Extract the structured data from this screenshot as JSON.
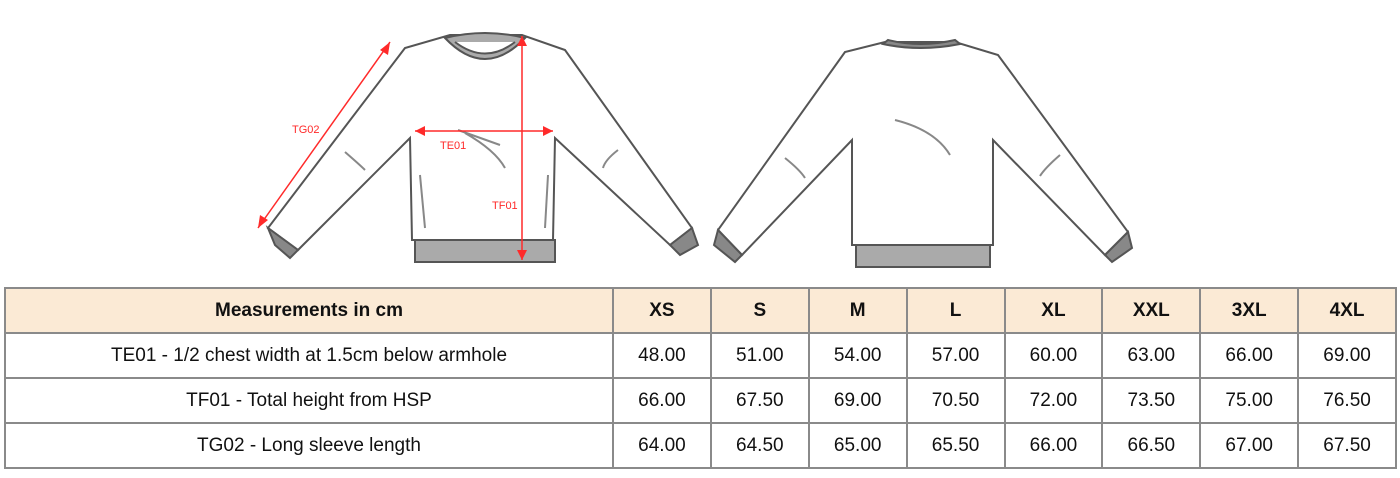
{
  "diagram": {
    "labels": {
      "sleeve": "TG02",
      "chest": "TE01",
      "height": "TF01"
    },
    "colors": {
      "measure": "#ff2a2a",
      "outline": "#555555",
      "rib": "#a9a9a9"
    }
  },
  "table": {
    "header": "Measurements in cm",
    "sizes": [
      "XS",
      "S",
      "M",
      "L",
      "XL",
      "XXL",
      "3XL",
      "4XL"
    ],
    "rows": [
      {
        "label": "TE01 - 1/2 chest width at 1.5cm below armhole",
        "values": [
          "48.00",
          "51.00",
          "54.00",
          "57.00",
          "60.00",
          "63.00",
          "66.00",
          "69.00"
        ]
      },
      {
        "label": "TF01 - Total height from HSP",
        "values": [
          "66.00",
          "67.50",
          "69.00",
          "70.50",
          "72.00",
          "73.50",
          "75.00",
          "76.50"
        ]
      },
      {
        "label": "TG02 - Long sleeve length",
        "values": [
          "64.00",
          "64.50",
          "65.00",
          "65.50",
          "66.00",
          "66.50",
          "67.00",
          "67.50"
        ]
      }
    ]
  }
}
